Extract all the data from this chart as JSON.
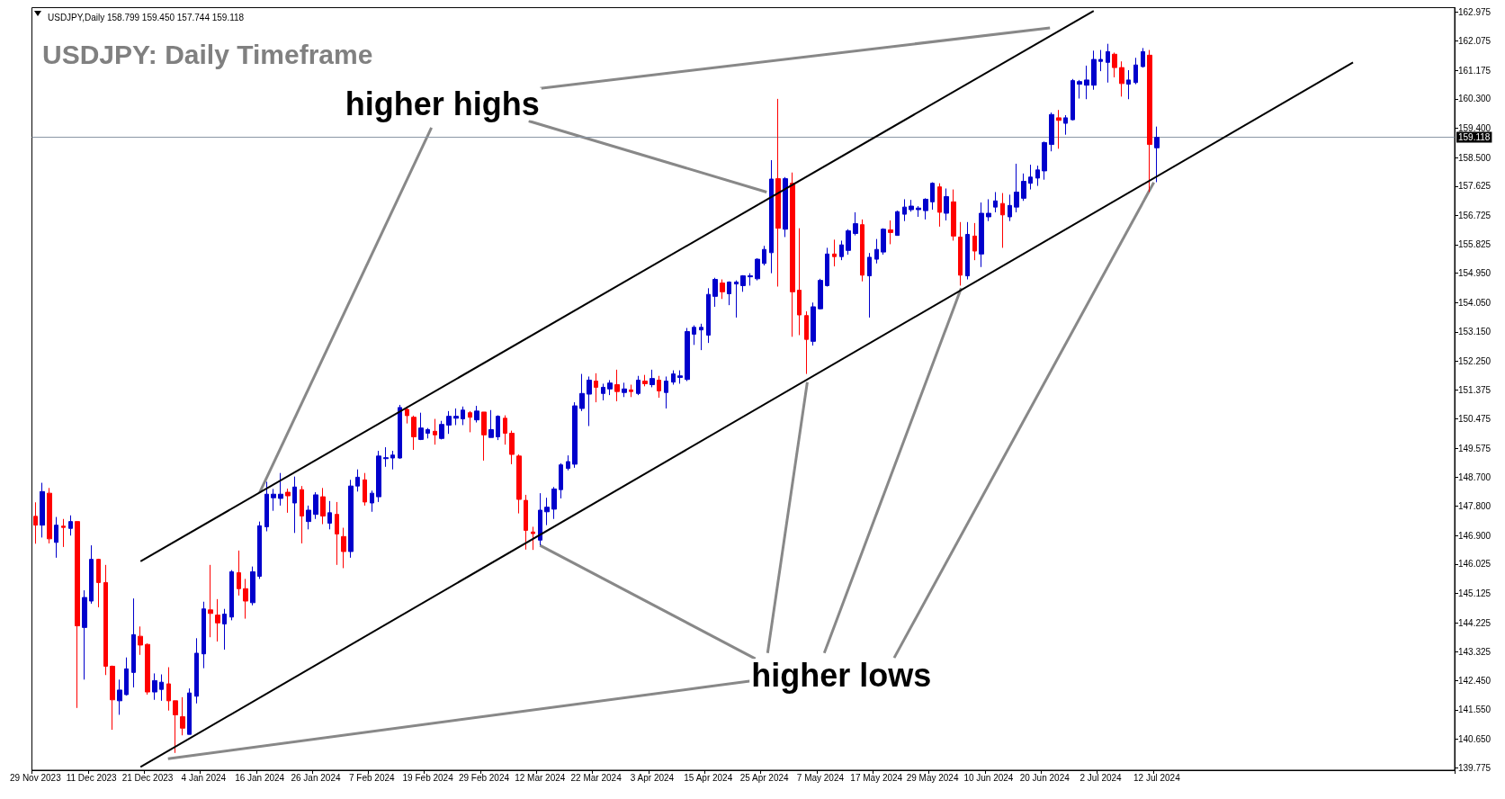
{
  "chart_data": {
    "type": "candlestick",
    "title": "USDJPY: Daily Timeframe",
    "subtitle": "USDJPY,Daily 158.799 159.450 157.744 159.118",
    "annotations": [
      {
        "text": "higher highs",
        "x": "16 Jan 2024",
        "y": 148.22
      },
      {
        "text": "higher lows",
        "x": "12 Mar 2024",
        "y": 146.6
      }
    ],
    "categories": [
      "29 Nov 2023",
      null,
      null,
      null,
      null,
      null,
      null,
      null,
      "11 Dec 2023",
      null,
      null,
      null,
      null,
      null,
      null,
      null,
      "21 Dec 2023",
      null,
      null,
      null,
      null,
      null,
      null,
      null,
      "4 Jan 2024",
      null,
      null,
      null,
      null,
      null,
      null,
      null,
      "16 Jan 2024",
      null,
      null,
      null,
      null,
      null,
      null,
      null,
      "26 Jan 2024",
      null,
      null,
      null,
      null,
      null,
      null,
      null,
      "7 Feb 2024",
      null,
      null,
      null,
      null,
      null,
      null,
      null,
      "19 Feb 2024",
      null,
      null,
      null,
      null,
      null,
      null,
      null,
      "29 Feb 2024",
      null,
      null,
      null,
      null,
      null,
      null,
      null,
      "12 Mar 2024",
      null,
      null,
      null,
      null,
      null,
      null,
      null,
      "22 Mar 2024",
      null,
      null,
      null,
      null,
      null,
      null,
      null,
      "3 Apr 2024",
      null,
      null,
      null,
      null,
      null,
      null,
      null,
      "15 Apr 2024",
      null,
      null,
      null,
      null,
      null,
      null,
      null,
      "25 Apr 2024",
      null,
      null,
      null,
      null,
      null,
      null,
      null,
      "7 May 2024",
      null,
      null,
      null,
      null,
      null,
      null,
      null,
      "17 May 2024",
      null,
      null,
      null,
      null,
      null,
      null,
      null,
      "29 May 2024",
      null,
      null,
      null,
      null,
      null,
      null,
      null,
      "10 Jun 2024",
      null,
      null,
      null,
      null,
      null,
      null,
      null,
      "20 Jun 2024",
      null,
      null,
      null,
      null,
      null,
      null,
      null,
      "2 Jul 2024",
      null,
      null,
      null,
      null,
      null,
      null,
      null,
      "12 Jul 2024",
      null,
      null,
      null,
      null,
      null,
      null,
      null,
      null,
      null,
      null,
      null,
      null,
      null,
      null,
      null,
      null,
      null,
      null,
      null,
      null,
      null,
      null,
      null,
      null,
      null,
      null,
      null,
      null,
      null,
      null,
      null,
      null,
      null,
      null,
      null,
      null,
      null,
      null,
      null,
      null,
      null,
      null
    ],
    "ohlc": [
      [
        147.49,
        147.92,
        146.65,
        147.22
      ],
      [
        147.22,
        148.52,
        146.84,
        148.25
      ],
      [
        148.2,
        148.36,
        146.66,
        146.8
      ],
      [
        146.69,
        147.47,
        146.22,
        147.22
      ],
      [
        147.19,
        147.41,
        146.55,
        147.15
      ],
      [
        147.12,
        147.52,
        146.9,
        147.33
      ],
      [
        147.33,
        147.33,
        141.61,
        144.13
      ],
      [
        144.08,
        145.22,
        142.48,
        145.0
      ],
      [
        144.89,
        146.6,
        144.81,
        146.17
      ],
      [
        146.17,
        146.19,
        144.7,
        145.46
      ],
      [
        145.46,
        146.0,
        142.62,
        142.89
      ],
      [
        142.89,
        142.91,
        140.94,
        141.86
      ],
      [
        141.83,
        142.48,
        141.4,
        142.16
      ],
      [
        142.02,
        143.16,
        141.99,
        142.81
      ],
      [
        142.7,
        144.97,
        142.24,
        143.86
      ],
      [
        143.81,
        144.11,
        143.24,
        143.54
      ],
      [
        143.56,
        143.59,
        142.02,
        142.1
      ],
      [
        142.1,
        142.67,
        141.86,
        142.45
      ],
      [
        142.18,
        142.64,
        141.83,
        142.4
      ],
      [
        142.35,
        142.86,
        141.53,
        141.83
      ],
      [
        141.83,
        141.83,
        140.23,
        141.4
      ],
      [
        141.34,
        141.94,
        140.77,
        140.99
      ],
      [
        140.8,
        142.21,
        140.8,
        142.07
      ],
      [
        141.97,
        143.75,
        141.75,
        143.29
      ],
      [
        143.27,
        144.87,
        142.83,
        144.65
      ],
      [
        144.62,
        146.0,
        143.78,
        144.51
      ],
      [
        144.46,
        144.95,
        143.65,
        144.22
      ],
      [
        144.19,
        144.65,
        143.4,
        144.49
      ],
      [
        144.4,
        145.84,
        144.3,
        145.79
      ],
      [
        145.76,
        146.44,
        145.06,
        145.27
      ],
      [
        145.27,
        145.57,
        144.35,
        144.89
      ],
      [
        144.84,
        145.95,
        144.76,
        145.79
      ],
      [
        145.65,
        147.33,
        145.57,
        147.2
      ],
      [
        147.17,
        148.55,
        147.03,
        148.17
      ],
      [
        148.06,
        148.33,
        147.66,
        148.17
      ],
      [
        148.04,
        148.82,
        147.82,
        148.17
      ],
      [
        148.23,
        148.34,
        147.6,
        148.12
      ],
      [
        147.9,
        148.71,
        146.98,
        148.39
      ],
      [
        148.31,
        148.42,
        146.66,
        147.5
      ],
      [
        147.33,
        147.82,
        147.09,
        147.68
      ],
      [
        147.55,
        148.23,
        147.41,
        148.15
      ],
      [
        148.09,
        148.36,
        147.25,
        147.5
      ],
      [
        147.28,
        147.96,
        147.09,
        147.6
      ],
      [
        147.55,
        147.93,
        146.0,
        146.95
      ],
      [
        146.87,
        147.14,
        145.9,
        146.41
      ],
      [
        146.41,
        148.61,
        146.22,
        148.42
      ],
      [
        148.42,
        148.93,
        148.25,
        148.69
      ],
      [
        148.61,
        148.82,
        147.82,
        147.93
      ],
      [
        147.9,
        148.28,
        147.63,
        148.2
      ],
      [
        148.09,
        149.5,
        147.93,
        149.34
      ],
      [
        149.26,
        149.61,
        149.01,
        149.29
      ],
      [
        149.28,
        149.5,
        148.93,
        149.37
      ],
      [
        149.28,
        150.91,
        149.26,
        150.83
      ],
      [
        150.77,
        150.86,
        150.34,
        150.58
      ],
      [
        150.53,
        150.58,
        149.53,
        149.93
      ],
      [
        149.85,
        150.67,
        149.83,
        150.2
      ],
      [
        150.04,
        150.2,
        149.88,
        150.15
      ],
      [
        150.1,
        150.48,
        149.69,
        149.99
      ],
      [
        149.88,
        150.42,
        149.85,
        150.31
      ],
      [
        150.29,
        150.72,
        150.02,
        150.56
      ],
      [
        150.5,
        150.8,
        150.29,
        150.56
      ],
      [
        150.48,
        150.86,
        150.29,
        150.75
      ],
      [
        150.67,
        150.72,
        150.07,
        150.53
      ],
      [
        150.45,
        150.88,
        150.37,
        150.72
      ],
      [
        150.69,
        150.69,
        149.2,
        149.99
      ],
      [
        149.91,
        150.75,
        149.91,
        150.15
      ],
      [
        149.93,
        150.59,
        149.83,
        150.56
      ],
      [
        150.5,
        150.59,
        149.69,
        150.04
      ],
      [
        150.04,
        150.12,
        149.09,
        149.39
      ],
      [
        149.34,
        149.39,
        147.58,
        148.01
      ],
      [
        147.98,
        148.15,
        146.47,
        147.06
      ],
      [
        147.01,
        147.17,
        146.46,
        146.96
      ],
      [
        146.76,
        148.2,
        146.6,
        147.68
      ],
      [
        147.63,
        148.06,
        147.22,
        147.77
      ],
      [
        147.71,
        148.39,
        147.41,
        148.33
      ],
      [
        148.31,
        149.12,
        148.04,
        149.07
      ],
      [
        148.96,
        149.36,
        148.9,
        149.17
      ],
      [
        149.09,
        150.99,
        148.98,
        150.88
      ],
      [
        150.8,
        151.86,
        150.72,
        151.26
      ],
      [
        151.24,
        151.78,
        150.26,
        151.67
      ],
      [
        151.64,
        151.88,
        150.99,
        151.45
      ],
      [
        151.26,
        151.56,
        151.05,
        151.45
      ],
      [
        151.4,
        151.67,
        151.21,
        151.58
      ],
      [
        151.53,
        151.99,
        151.02,
        151.32
      ],
      [
        151.29,
        151.59,
        151.15,
        151.4
      ],
      [
        151.37,
        151.53,
        151.15,
        151.32
      ],
      [
        151.26,
        151.8,
        151.21,
        151.67
      ],
      [
        151.64,
        151.83,
        151.48,
        151.56
      ],
      [
        151.53,
        151.99,
        151.45,
        151.72
      ],
      [
        151.67,
        151.8,
        151.13,
        151.34
      ],
      [
        151.29,
        151.78,
        150.8,
        151.64
      ],
      [
        151.61,
        151.97,
        151.53,
        151.86
      ],
      [
        151.75,
        151.97,
        151.56,
        151.8
      ],
      [
        151.69,
        153.27,
        151.64,
        153.16
      ],
      [
        153.08,
        153.35,
        152.75,
        153.29
      ],
      [
        153.21,
        153.4,
        152.59,
        153.29
      ],
      [
        153.05,
        154.49,
        152.81,
        154.3
      ],
      [
        154.24,
        154.81,
        153.92,
        154.76
      ],
      [
        154.65,
        154.76,
        154.16,
        154.38
      ],
      [
        154.32,
        154.7,
        153.97,
        154.68
      ],
      [
        154.62,
        154.73,
        153.59,
        154.68
      ],
      [
        154.57,
        154.89,
        154.38,
        154.87
      ],
      [
        154.84,
        154.95,
        154.57,
        154.87
      ],
      [
        154.78,
        155.41,
        154.73,
        155.38
      ],
      [
        155.25,
        155.79,
        155.19,
        155.68
      ],
      [
        155.58,
        158.42,
        154.95,
        157.84
      ],
      [
        157.85,
        160.3,
        154.54,
        156.33
      ],
      [
        156.3,
        157.9,
        156.06,
        157.85
      ],
      [
        157.71,
        158.04,
        153.0,
        154.38
      ],
      [
        154.43,
        156.33,
        153.05,
        153.67
      ],
      [
        153.65,
        153.78,
        151.86,
        152.92
      ],
      [
        152.86,
        154.05,
        152.73,
        153.92
      ],
      [
        153.86,
        154.78,
        153.84,
        154.73
      ],
      [
        154.57,
        155.73,
        154.54,
        155.54
      ],
      [
        155.54,
        155.98,
        155.16,
        155.46
      ],
      [
        155.46,
        155.95,
        155.35,
        155.82
      ],
      [
        155.65,
        156.3,
        155.52,
        156.25
      ],
      [
        156.17,
        156.82,
        156.11,
        156.47
      ],
      [
        156.44,
        156.6,
        154.7,
        154.89
      ],
      [
        154.87,
        155.57,
        153.59,
        155.44
      ],
      [
        155.38,
        156.0,
        155.25,
        155.68
      ],
      [
        155.6,
        156.33,
        155.52,
        156.3
      ],
      [
        156.28,
        156.57,
        155.84,
        156.2
      ],
      [
        156.11,
        156.87,
        156.11,
        156.84
      ],
      [
        156.76,
        157.22,
        156.55,
        156.98
      ],
      [
        156.9,
        157.2,
        156.84,
        157.01
      ],
      [
        156.9,
        157.01,
        156.68,
        156.95
      ],
      [
        156.87,
        157.25,
        156.6,
        157.22
      ],
      [
        157.14,
        157.74,
        156.9,
        157.71
      ],
      [
        157.6,
        157.71,
        156.38,
        156.82
      ],
      [
        156.79,
        157.55,
        156.57,
        157.3
      ],
      [
        157.14,
        157.52,
        155.95,
        156.09
      ],
      [
        156.06,
        156.52,
        154.57,
        154.89
      ],
      [
        154.87,
        156.52,
        154.76,
        156.14
      ],
      [
        156.09,
        156.49,
        155.35,
        155.63
      ],
      [
        155.54,
        157.12,
        155.14,
        156.79
      ],
      [
        156.68,
        157.22,
        156.55,
        156.79
      ],
      [
        156.98,
        157.44,
        156.82,
        157.17
      ],
      [
        157.09,
        157.41,
        155.73,
        156.74
      ],
      [
        156.68,
        157.36,
        156.55,
        157.03
      ],
      [
        156.98,
        158.31,
        156.82,
        157.44
      ],
      [
        157.25,
        158.01,
        157.17,
        157.77
      ],
      [
        157.71,
        158.28,
        157.52,
        157.9
      ],
      [
        157.87,
        158.25,
        157.63,
        158.12
      ],
      [
        158.09,
        158.99,
        157.82,
        158.96
      ],
      [
        158.9,
        159.88,
        158.69,
        159.82
      ],
      [
        159.72,
        159.96,
        158.77,
        159.64
      ],
      [
        159.55,
        159.8,
        159.2,
        159.72
      ],
      [
        159.66,
        160.91,
        159.64,
        160.86
      ],
      [
        160.75,
        160.88,
        160.31,
        160.83
      ],
      [
        160.72,
        161.32,
        160.29,
        160.88
      ],
      [
        160.72,
        161.78,
        160.58,
        161.51
      ],
      [
        161.45,
        161.8,
        161.15,
        161.51
      ],
      [
        161.42,
        161.99,
        160.8,
        161.75
      ],
      [
        161.67,
        161.72,
        160.96,
        161.26
      ],
      [
        161.26,
        161.45,
        160.37,
        160.77
      ],
      [
        160.75,
        161.18,
        160.29,
        160.88
      ],
      [
        160.8,
        161.56,
        160.75,
        161.34
      ],
      [
        161.29,
        161.86,
        161.26,
        161.75
      ],
      [
        161.64,
        161.8,
        157.44,
        158.9
      ],
      [
        158.799,
        159.45,
        157.744,
        159.118
      ],
      null,
      null,
      null,
      null,
      null,
      null,
      null,
      null,
      null,
      null,
      null,
      null,
      null,
      null,
      null,
      null,
      null,
      null,
      null,
      null,
      null,
      null,
      null,
      null,
      null,
      null,
      null,
      null,
      null,
      null,
      null,
      null,
      null,
      null,
      null,
      null,
      null,
      null,
      null,
      null,
      null,
      null
    ],
    "colors": [
      "#ff0000",
      "#0000cc",
      "#ff0000",
      "#0000cc",
      "#ff0000",
      "#0000cc",
      "#ff0000",
      "#0000cc",
      "#0000cc",
      "#ff0000",
      "#ff0000",
      "#ff0000",
      "#0000cc",
      "#0000cc",
      "#0000cc",
      "#ff0000",
      "#ff0000",
      "#0000cc",
      "#0000cc",
      "#ff0000",
      "#ff0000",
      "#ff0000",
      "#0000cc",
      "#0000cc",
      "#0000cc",
      "#ff0000",
      "#ff0000",
      "#0000cc",
      "#0000cc",
      "#ff0000",
      "#ff0000",
      "#0000cc",
      "#0000cc",
      "#0000cc",
      "#0000cc",
      "#0000cc",
      "#ff0000",
      "#0000cc",
      "#ff0000",
      "#0000cc",
      "#0000cc",
      "#ff0000",
      "#0000cc",
      "#ff0000",
      "#ff0000",
      "#0000cc",
      "#0000cc",
      "#ff0000",
      "#0000cc",
      "#0000cc",
      "#0000cc",
      "#0000cc",
      "#0000cc",
      "#ff0000",
      "#ff0000",
      "#0000cc",
      "#0000cc",
      "#ff0000",
      "#0000cc",
      "#0000cc",
      "#0000cc",
      "#0000cc",
      "#ff0000",
      "#0000cc",
      "#ff0000",
      "#0000cc",
      "#0000cc",
      "#ff0000",
      "#ff0000",
      "#ff0000",
      "#ff0000",
      "#ff0000",
      "#0000cc",
      "#0000cc",
      "#0000cc",
      "#0000cc",
      "#0000cc",
      "#0000cc",
      "#0000cc",
      "#0000cc",
      "#ff0000",
      "#0000cc",
      "#0000cc",
      "#ff0000",
      "#0000cc",
      "#ff0000",
      "#0000cc",
      "#ff0000",
      "#0000cc",
      "#ff0000",
      "#0000cc",
      "#0000cc",
      "#0000cc",
      "#0000cc",
      "#0000cc",
      "#0000cc",
      "#0000cc",
      "#0000cc",
      "#ff0000",
      "#0000cc",
      "#0000cc",
      "#0000cc",
      "#0000cc",
      "#0000cc",
      "#0000cc",
      "#0000cc",
      "#ff0000",
      "#0000cc",
      "#ff0000",
      "#ff0000",
      "#ff0000",
      "#0000cc",
      "#0000cc",
      "#0000cc",
      "#ff0000",
      "#0000cc",
      "#0000cc",
      "#0000cc",
      "#ff0000",
      "#0000cc",
      "#0000cc",
      "#0000cc",
      "#ff0000",
      "#0000cc",
      "#0000cc",
      "#0000cc",
      "#0000cc",
      "#0000cc",
      "#0000cc",
      "#ff0000",
      "#0000cc",
      "#ff0000",
      "#ff0000",
      "#0000cc",
      "#ff0000",
      "#0000cc",
      "#0000cc",
      "#0000cc",
      "#ff0000",
      "#0000cc",
      "#0000cc",
      "#0000cc",
      "#0000cc",
      "#0000cc",
      "#0000cc",
      "#0000cc",
      "#ff0000",
      "#0000cc",
      "#0000cc",
      "#0000cc",
      "#0000cc",
      "#0000cc",
      "#0000cc",
      "#0000cc",
      "#ff0000",
      "#ff0000",
      "#0000cc",
      "#0000cc",
      "#0000cc",
      "#ff0000",
      "#0000cc",
      null,
      null,
      null,
      null,
      null,
      null,
      null,
      null,
      null,
      null,
      null,
      null,
      null,
      null,
      null,
      null,
      null,
      null,
      null,
      null,
      null,
      null,
      null,
      null,
      null,
      null,
      null,
      null,
      null,
      null,
      null,
      null,
      null,
      null,
      null,
      null,
      null,
      null,
      null,
      null,
      null,
      null
    ],
    "series": [
      {
        "type": "line",
        "color": "#000000",
        "values": [
          null,
          null,
          null,
          null,
          null,
          null,
          null,
          null,
          null,
          null,
          null,
          null,
          null,
          null,
          null,
          146.11,
          null,
          null,
          null,
          null,
          null,
          null,
          null,
          null,
          null,
          null,
          null,
          null,
          null,
          null,
          null,
          null,
          null,
          null,
          null,
          null,
          null,
          null,
          null,
          null,
          null,
          null,
          null,
          null,
          null,
          null,
          null,
          null,
          null,
          null,
          null,
          null,
          null,
          null,
          null,
          null,
          null,
          null,
          null,
          null,
          null,
          null,
          null,
          null,
          null,
          null,
          null,
          null,
          null,
          null,
          null,
          null,
          null,
          null,
          null,
          null,
          null,
          null,
          null,
          null,
          null,
          null,
          null,
          null,
          null,
          null,
          null,
          null,
          null,
          null,
          null,
          null,
          null,
          null,
          null,
          null,
          null,
          null,
          null,
          null,
          null,
          null,
          null,
          null,
          null,
          null,
          null,
          null,
          null,
          null,
          null,
          null,
          null,
          null,
          null,
          null,
          null,
          null,
          null,
          null,
          null,
          null,
          null,
          null,
          null,
          null,
          null,
          null,
          null,
          null,
          null,
          null,
          null,
          null,
          null,
          null,
          null,
          null,
          null,
          null,
          null,
          null,
          null,
          null,
          null,
          null,
          null,
          null,
          null,
          null,
          null,
          163.0,
          null,
          null,
          null,
          null,
          null,
          null,
          null,
          null,
          null,
          null,
          null,
          null,
          null,
          null,
          null,
          null,
          null,
          null,
          null,
          null,
          null,
          null,
          null,
          null,
          null,
          null,
          null,
          null,
          null,
          null,
          null,
          null,
          null,
          null,
          null,
          null,
          null,
          null,
          null,
          null,
          null,
          null,
          null,
          null,
          null,
          null,
          null,
          null,
          null,
          null,
          null
        ]
      },
      {
        "type": "line",
        "color": "#000000",
        "values": [
          null,
          null,
          null,
          null,
          null,
          null,
          null,
          null,
          null,
          null,
          null,
          null,
          null,
          null,
          null,
          139.8,
          null,
          null,
          null,
          null,
          null,
          null,
          null,
          null,
          null,
          null,
          null,
          null,
          null,
          null,
          null,
          null,
          null,
          null,
          null,
          null,
          null,
          null,
          null,
          null,
          null,
          null,
          null,
          null,
          null,
          null,
          null,
          null,
          null,
          null,
          null,
          null,
          null,
          null,
          null,
          null,
          null,
          null,
          null,
          null,
          null,
          null,
          null,
          null,
          null,
          null,
          null,
          null,
          null,
          null,
          null,
          null,
          null,
          null,
          null,
          null,
          null,
          null,
          null,
          null,
          null,
          null,
          null,
          null,
          null,
          null,
          null,
          null,
          null,
          null,
          null,
          null,
          null,
          null,
          null,
          null,
          null,
          null,
          null,
          null,
          null,
          null,
          null,
          null,
          null,
          null,
          null,
          null,
          null,
          null,
          null,
          null,
          null,
          null,
          null,
          null,
          null,
          null,
          null,
          null,
          null,
          null,
          null,
          null,
          null,
          null,
          null,
          null,
          null,
          null,
          null,
          null,
          null,
          null,
          null,
          null,
          null,
          null,
          null,
          null,
          null,
          null,
          null,
          null,
          null,
          null,
          null,
          null,
          null,
          null,
          null,
          null,
          null,
          null,
          null,
          null,
          null,
          null,
          null,
          null,
          null,
          null,
          null,
          null,
          null,
          null,
          null,
          null,
          null,
          null,
          null,
          null,
          null,
          null,
          null,
          null,
          null,
          null,
          null,
          null,
          null,
          null,
          null,
          null,
          null,
          null,
          null,
          null,
          161.42,
          null,
          null,
          null,
          null,
          null,
          null,
          null,
          null,
          null,
          null,
          null,
          null,
          null,
          null
        ]
      }
    ],
    "ylim": [
      139.7,
      163.1
    ],
    "yticks": [
      {
        "value": 162.975,
        "label": "162.975"
      },
      {
        "value": 162.075,
        "label": "162.075"
      },
      {
        "value": 161.175,
        "label": "161.175"
      },
      {
        "value": 160.3,
        "label": "160.300"
      },
      {
        "value": 159.4,
        "label": "159.400"
      },
      {
        "value": 158.5,
        "label": "158.500"
      },
      {
        "value": 157.625,
        "label": "157.625"
      },
      {
        "value": 156.725,
        "label": "156.725"
      },
      {
        "value": 155.825,
        "label": "155.825"
      },
      {
        "value": 154.95,
        "label": "154.950"
      },
      {
        "value": 154.05,
        "label": "154.050"
      },
      {
        "value": 153.15,
        "label": "153.150"
      },
      {
        "value": 152.25,
        "label": "152.250"
      },
      {
        "value": 151.375,
        "label": "151.375"
      },
      {
        "value": 150.475,
        "label": "150.475"
      },
      {
        "value": 149.575,
        "label": "149.575"
      },
      {
        "value": 148.7,
        "label": "148.700"
      },
      {
        "value": 147.8,
        "label": "147.800"
      },
      {
        "value": 146.9,
        "label": "146.900"
      },
      {
        "value": 146.025,
        "label": "146.025"
      },
      {
        "value": 145.125,
        "label": "145.125"
      },
      {
        "value": 144.225,
        "label": "144.225"
      },
      {
        "value": 143.325,
        "label": "143.325"
      },
      {
        "value": 142.45,
        "label": "142.450"
      },
      {
        "value": 141.55,
        "label": "141.550"
      },
      {
        "value": 140.65,
        "label": "140.650"
      },
      {
        "value": 139.775,
        "label": "139.775"
      }
    ],
    "ref_lines": [
      {
        "axis": "y",
        "value": 159.118,
        "label": "159.118",
        "color": "#8a97a6"
      }
    ]
  }
}
